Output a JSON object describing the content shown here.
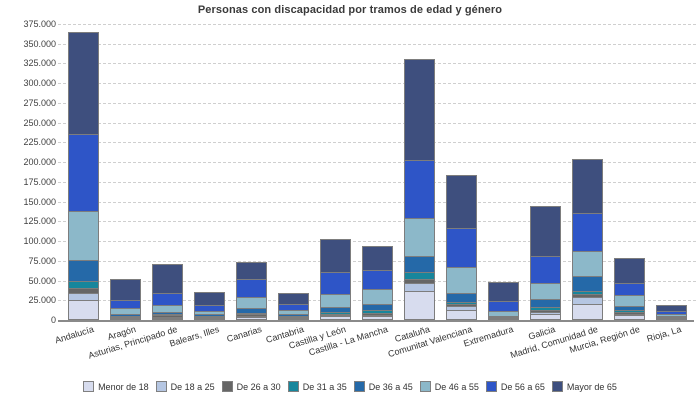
{
  "title": "Personas con discapacidad por tramos de edad y género",
  "axis": {
    "y_tick_labels": [
      "0",
      "25.000",
      "50.000",
      "75.000",
      "100.000",
      "125.000",
      "150.000",
      "175.000",
      "200.000",
      "225.000",
      "250.000",
      "275.000",
      "300.000",
      "325.000",
      "350.000",
      "375.000"
    ]
  },
  "chart_data": {
    "type": "bar",
    "stacked": true,
    "title": "Personas con discapacidad por tramos de edad y género",
    "xlabel": "",
    "ylabel": "",
    "ylim": [
      0,
      375000
    ],
    "ytick_step": 25000,
    "grid": "dashed-horizontal",
    "legend_position": "bottom",
    "categories": [
      "Andalucía",
      "Aragón",
      "Asturias, Principado de",
      "Balears, Illes",
      "Canarias",
      "Cantabria",
      "Castilla y León",
      "Castilla - La Mancha",
      "Cataluña",
      "Comunitat Valenciana",
      "Extremadura",
      "Galicia",
      "Madrid, Comunidad de",
      "Murcia, Región de",
      "Rioja, La"
    ],
    "series": [
      {
        "name": "Menor de 18",
        "color": "#D7DCEE",
        "values": [
          24000,
          1800,
          2200,
          1500,
          2800,
          1500,
          3200,
          4000,
          34800,
          11500,
          1200,
          6000,
          18500,
          4500,
          900
        ]
      },
      {
        "name": "De 18 a 25",
        "color": "#B5C6E2",
        "values": [
          8500,
          700,
          900,
          600,
          1500,
          600,
          1200,
          1500,
          10700,
          5000,
          500,
          2200,
          8900,
          1700,
          400
        ]
      },
      {
        "name": "De 26 a 30",
        "color": "#666666",
        "values": [
          6500,
          1000,
          1300,
          800,
          1800,
          800,
          2000,
          2500,
          5500,
          2500,
          700,
          3000,
          3800,
          2200,
          500
        ]
      },
      {
        "name": "De 31 a 35",
        "color": "#17869C",
        "values": [
          8500,
          800,
          1500,
          900,
          2000,
          900,
          3000,
          3500,
          8500,
          2500,
          600,
          4500,
          3800,
          3000,
          500
        ]
      },
      {
        "name": "De 36 a 45",
        "color": "#2569A8",
        "values": [
          27500,
          2500,
          3000,
          2200,
          5600,
          2600,
          5600,
          7600,
          19900,
          12000,
          1200,
          9400,
          19500,
          5100,
          1400
        ]
      },
      {
        "name": "De 46 a 55",
        "color": "#8CB8C9",
        "values": [
          61500,
          7300,
          8500,
          4200,
          14000,
          5100,
          16900,
          18700,
          48900,
          32600,
          6000,
          21100,
          31100,
          14000,
          2800
        ]
      },
      {
        "name": "De 56 a 65",
        "color": "#2E55C7",
        "values": [
          98000,
          10200,
          15300,
          7300,
          22900,
          7600,
          27100,
          23700,
          72900,
          48900,
          13100,
          34000,
          48800,
          15700,
          4200
        ]
      },
      {
        "name": "Mayor de 65",
        "color": "#3E4F7E",
        "values": [
          127500,
          24600,
          36000,
          16000,
          20400,
          12300,
          41600,
          29800,
          126400,
          66600,
          22900,
          62000,
          66600,
          29800,
          6300
        ]
      }
    ]
  }
}
